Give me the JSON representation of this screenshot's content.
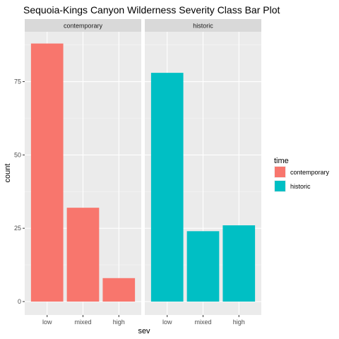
{
  "chart_data": {
    "type": "bar",
    "title": "Sequoia-Kings Canyon Wilderness Severity Class Bar Plot",
    "xlabel": "sev",
    "ylabel": "count",
    "categories": [
      "low",
      "mixed",
      "high"
    ],
    "ylim": [
      0,
      92
    ],
    "yticks": [
      0,
      25,
      50,
      75
    ],
    "grid": true,
    "legend": {
      "title": "time",
      "placement": "right",
      "entries": [
        {
          "label": "contemporary",
          "color": "#F8766D"
        },
        {
          "label": "historic",
          "color": "#00BFC4"
        }
      ]
    },
    "facets": [
      {
        "label": "contemporary",
        "color": "#F8766D",
        "values": [
          88,
          32,
          8
        ]
      },
      {
        "label": "historic",
        "color": "#00BFC4",
        "values": [
          78,
          24,
          26
        ]
      }
    ]
  }
}
